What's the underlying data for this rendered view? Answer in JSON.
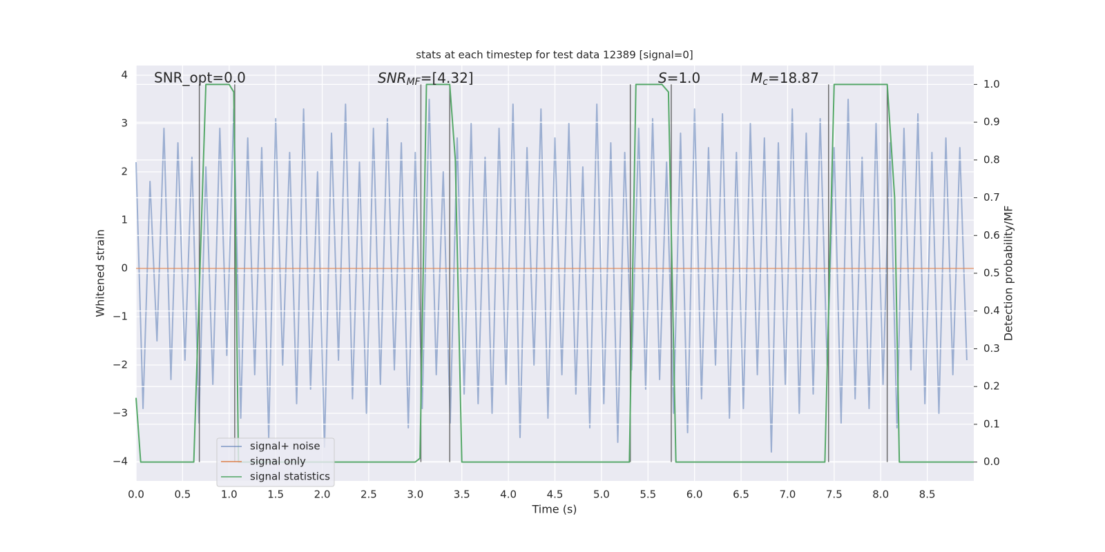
{
  "chart_data": {
    "type": "line",
    "title": "stats at each timestep for test data 12389 [signal=0]",
    "x_label": "Time (s)",
    "y_label": "Whitened strain",
    "y2_label": "Detection probability/MF",
    "xlim": [
      0,
      9.0
    ],
    "ylim": [
      -4.4,
      4.2
    ],
    "y2lim": [
      -0.05,
      1.05
    ],
    "xticks": [
      {
        "value": 0,
        "label": "0.0"
      },
      0.5,
      {
        "value": 1,
        "label": "1.0"
      },
      1.5,
      {
        "value": 2,
        "label": "2.0"
      },
      2.5,
      {
        "value": 3,
        "label": "3.0"
      },
      3.5,
      {
        "value": 4,
        "label": "4.0"
      },
      4.5,
      {
        "value": 5,
        "label": "5.0"
      },
      5.5,
      {
        "value": 6,
        "label": "6.0"
      },
      6.5,
      {
        "value": 7,
        "label": "7.0"
      },
      7.5,
      {
        "value": 8,
        "label": "8.0"
      },
      8.5
    ],
    "yticks": [
      {
        "value": -4,
        "label": "−4"
      },
      {
        "value": -3,
        "label": "−3"
      },
      {
        "value": -2,
        "label": "−2"
      },
      {
        "value": -1,
        "label": "−1"
      },
      0,
      1,
      2,
      3,
      4
    ],
    "y2ticks": [
      {
        "value": 0,
        "label": "0.0"
      },
      0.1,
      0.2,
      0.3,
      0.4,
      0.5,
      0.6,
      0.7,
      0.8,
      0.9,
      {
        "value": 1,
        "label": "1.0"
      }
    ],
    "grid": true,
    "legend": "lower left",
    "series": [
      {
        "name": "signal+ noise",
        "color": "#4c72b0",
        "x": [
          0,
          0.075,
          0.15,
          0.225,
          0.3,
          0.375,
          0.45,
          0.525,
          0.6,
          0.675,
          0.75,
          0.825,
          0.9,
          0.975,
          1.05,
          1.125,
          1.2,
          1.275,
          1.35,
          1.425,
          1.5,
          1.575,
          1.65,
          1.725,
          1.8,
          1.875,
          1.95,
          2.025,
          2.1,
          2.175,
          2.25,
          2.325,
          2.4,
          2.475,
          2.55,
          2.625,
          2.7,
          2.775,
          2.85,
          2.925,
          3.0,
          3.075,
          3.15,
          3.225,
          3.3,
          3.375,
          3.45,
          3.525,
          3.6,
          3.675,
          3.75,
          3.825,
          3.9,
          3.975,
          4.05,
          4.125,
          4.2,
          4.275,
          4.35,
          4.425,
          4.5,
          4.575,
          4.65,
          4.725,
          4.8,
          4.875,
          4.95,
          5.025,
          5.1,
          5.175,
          5.25,
          5.325,
          5.4,
          5.475,
          5.55,
          5.625,
          5.7,
          5.775,
          5.85,
          5.925,
          6.0,
          6.075,
          6.15,
          6.225,
          6.3,
          6.375,
          6.45,
          6.525,
          6.6,
          6.675,
          6.75,
          6.825,
          6.9,
          6.975,
          7.05,
          7.125,
          7.2,
          7.275,
          7.35,
          7.425,
          7.5,
          7.575,
          7.65,
          7.725,
          7.8,
          7.875,
          7.95,
          8.025,
          8.1,
          8.175,
          8.25,
          8.325,
          8.4,
          8.475,
          8.55,
          8.625,
          8.7,
          8.775,
          8.85,
          8.925
        ],
        "values": [
          2.2,
          -2.9,
          1.8,
          -1.5,
          2.9,
          -2.3,
          2.6,
          -1.9,
          2.3,
          -3.2,
          2.1,
          -2.4,
          2.9,
          -1.8,
          3.3,
          -3.1,
          2.7,
          -2.2,
          2.5,
          -3.5,
          3.1,
          -2.0,
          2.4,
          -2.8,
          3.3,
          -2.5,
          2.0,
          -3.7,
          2.8,
          -1.9,
          3.4,
          -2.7,
          2.2,
          -3.0,
          2.9,
          -2.4,
          3.1,
          -2.1,
          2.6,
          -3.3,
          2.4,
          -2.9,
          3.5,
          -2.2,
          2.0,
          -3.2,
          2.7,
          -2.6,
          3.0,
          -2.8,
          2.3,
          -3.0,
          2.9,
          -2.4,
          3.4,
          -3.5,
          2.5,
          -2.0,
          3.3,
          -3.1,
          2.7,
          -2.2,
          3.0,
          -2.6,
          2.1,
          -3.3,
          3.4,
          -2.8,
          2.6,
          -3.6,
          2.4,
          -2.1,
          2.9,
          -2.5,
          3.1,
          -2.3,
          2.2,
          -3.0,
          2.8,
          -3.4,
          3.3,
          -2.7,
          2.5,
          -2.0,
          3.2,
          -3.1,
          2.4,
          -2.9,
          3.0,
          -2.2,
          2.7,
          -3.8,
          2.6,
          -2.4,
          3.3,
          -3.0,
          2.8,
          -2.6,
          3.1,
          -2.0,
          2.5,
          -3.2,
          3.5,
          -2.7,
          2.3,
          -2.9,
          3.0,
          -2.4,
          2.6,
          -3.3,
          2.9,
          -2.1,
          3.2,
          -2.8,
          2.4,
          -3.0,
          2.7,
          -2.2,
          2.5,
          -1.9
        ]
      },
      {
        "name": "signal only",
        "color": "#dd8452",
        "x": [
          0,
          9.0
        ],
        "values": [
          0,
          0
        ]
      },
      {
        "name": "signal statistics",
        "color": "#55a868",
        "axis": "y2",
        "x": [
          0,
          0.05,
          0.62,
          0.75,
          1.0,
          1.05,
          1.1,
          3.0,
          3.05,
          3.12,
          3.37,
          3.43,
          3.5,
          5.3,
          5.37,
          5.65,
          5.72,
          5.8,
          7.4,
          7.5,
          8.07,
          8.15,
          8.2,
          9.0
        ],
        "values": [
          0.17,
          0,
          0,
          1.0,
          1.0,
          0.98,
          0,
          0,
          0.01,
          1.0,
          1.0,
          0.8,
          0,
          0,
          1.0,
          1.0,
          0.98,
          0,
          0,
          1.0,
          1.0,
          0.7,
          0,
          0
        ]
      }
    ],
    "markers": {
      "color": "#555555",
      "x": [
        0.68,
        1.06,
        3.06,
        3.37,
        5.31,
        5.75,
        7.44,
        8.07
      ],
      "y2_range": [
        0,
        1.0
      ]
    },
    "annotations": [
      {
        "text": "SNR_opt=0.0"
      },
      {
        "base": "SNR",
        "sub": "MF",
        "rest": "=[4.32]"
      },
      {
        "base": "S",
        "rest": "=1.0"
      },
      {
        "base": "M",
        "sub": "c",
        "rest": "=18.87"
      }
    ]
  }
}
